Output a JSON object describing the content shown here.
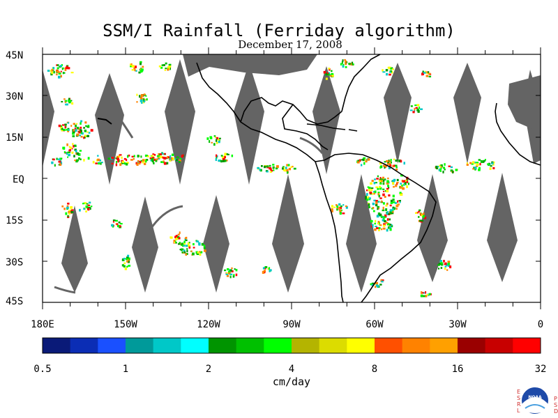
{
  "title": "SSM/I Rainfall (Ferriday algorithm)",
  "date": "December 17, 2008",
  "lat_labels": [
    "45N",
    "30N",
    "15N",
    "EQ",
    "15S",
    "30S",
    "45S"
  ],
  "lon_labels": [
    "180E",
    "150W",
    "120W",
    "90W",
    "60W",
    "30W",
    "0"
  ],
  "colorbar": {
    "unit": "cm/day",
    "tick_labels": [
      "0.5",
      "1",
      "2",
      "4",
      "8",
      "16",
      "32"
    ],
    "colors": [
      "#0a1a78",
      "#0b2db5",
      "#1a50ff",
      "#009a9a",
      "#00c8c8",
      "#00ffff",
      "#009400",
      "#00c000",
      "#00ff00",
      "#b4b400",
      "#dcdc00",
      "#ffff00",
      "#ff5000",
      "#ff8200",
      "#ffa000",
      "#9a0000",
      "#c80000",
      "#ff0000"
    ]
  },
  "map": {
    "lat_range": [
      -45,
      45
    ],
    "lon_range": [
      -180,
      0
    ],
    "no_data_color": "#646464",
    "coast_color": "#000000"
  },
  "logo": {
    "left_letters": "ESRL",
    "right_letters": "PSD",
    "text": "NOAA"
  }
}
